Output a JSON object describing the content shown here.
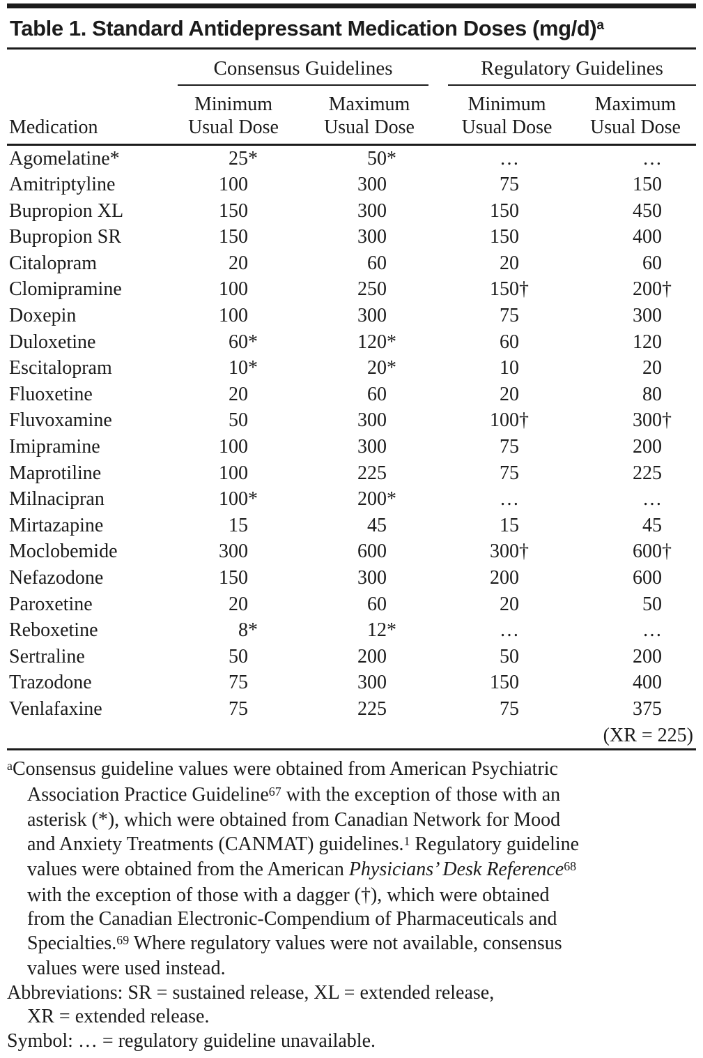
{
  "colors": {
    "text": "#1b1b1b",
    "rule": "#1b1b1b",
    "background": "#ffffff"
  },
  "title": {
    "text": "Table 1. Standard Antidepressant Medication Doses (mg/d)",
    "superscript": "a"
  },
  "table": {
    "medication_label": "Medication",
    "groups": [
      {
        "label": "Consensus Guidelines"
      },
      {
        "label": "Regulatory Guidelines"
      }
    ],
    "subcolumns": [
      {
        "line1": "Minimum",
        "line2": "Usual Dose"
      },
      {
        "line1": "Maximum",
        "line2": "Usual Dose"
      },
      {
        "line1": "Minimum",
        "line2": "Usual Dose"
      },
      {
        "line1": "Maximum",
        "line2": "Usual Dose"
      }
    ],
    "rows": [
      {
        "name": "Agomelatine*",
        "values": [
          "25*",
          "50*",
          "…",
          "…"
        ]
      },
      {
        "name": "Amitriptyline",
        "values": [
          "100",
          "300",
          "75",
          "150"
        ]
      },
      {
        "name": "Bupropion XL",
        "values": [
          "150",
          "300",
          "150",
          "450"
        ]
      },
      {
        "name": "Bupropion SR",
        "values": [
          "150",
          "300",
          "150",
          "400"
        ]
      },
      {
        "name": "Citalopram",
        "values": [
          "20",
          "60",
          "20",
          "60"
        ]
      },
      {
        "name": "Clomipramine",
        "values": [
          "100",
          "250",
          "150†",
          "200†"
        ]
      },
      {
        "name": "Doxepin",
        "values": [
          "100",
          "300",
          "75",
          "300"
        ]
      },
      {
        "name": "Duloxetine",
        "values": [
          "60*",
          "120*",
          "60",
          "120"
        ]
      },
      {
        "name": "Escitalopram",
        "values": [
          "10*",
          "20*",
          "10",
          "20"
        ]
      },
      {
        "name": "Fluoxetine",
        "values": [
          "20",
          "60",
          "20",
          "80"
        ]
      },
      {
        "name": "Fluvoxamine",
        "values": [
          "50",
          "300",
          "100†",
          "300†"
        ]
      },
      {
        "name": "Imipramine",
        "values": [
          "100",
          "300",
          "75",
          "200"
        ]
      },
      {
        "name": "Maprotiline",
        "values": [
          "100",
          "225",
          "75",
          "225"
        ]
      },
      {
        "name": "Milnacipran",
        "values": [
          "100*",
          "200*",
          "…",
          "…"
        ]
      },
      {
        "name": "Mirtazapine",
        "values": [
          "15",
          "45",
          "15",
          "45"
        ]
      },
      {
        "name": "Moclobemide",
        "values": [
          "300",
          "600",
          "300†",
          "600†"
        ]
      },
      {
        "name": "Nefazodone",
        "values": [
          "150",
          "300",
          "200",
          "600"
        ]
      },
      {
        "name": "Paroxetine",
        "values": [
          "20",
          "60",
          "20",
          "50"
        ]
      },
      {
        "name": "Reboxetine",
        "values": [
          "8*",
          "12*",
          "…",
          "…"
        ]
      },
      {
        "name": "Sertraline",
        "values": [
          "50",
          "200",
          "50",
          "200"
        ]
      },
      {
        "name": "Trazodone",
        "values": [
          "75",
          "300",
          "150",
          "400"
        ]
      },
      {
        "name": "Venlafaxine",
        "values": [
          "75",
          "225",
          "75",
          "375"
        ]
      }
    ],
    "xr_note": "(XR = 225)"
  },
  "footnotes": {
    "lines": [
      {
        "indent": false,
        "runs": [
          {
            "text": "a",
            "sup": true
          },
          {
            "text": "Consensus guideline values were obtained from American Psychiatric"
          }
        ]
      },
      {
        "indent": true,
        "runs": [
          {
            "text": "Association Practice Guideline"
          },
          {
            "text": "67",
            "sup": true
          },
          {
            "text": " with the exception of those with an"
          }
        ]
      },
      {
        "indent": true,
        "runs": [
          {
            "text": "asterisk (*), which were obtained from Canadian Network for Mood"
          }
        ]
      },
      {
        "indent": true,
        "runs": [
          {
            "text": "and Anxiety Treatments (CANMAT) guidelines."
          },
          {
            "text": "1",
            "sup": true
          },
          {
            "text": " Regulatory guideline"
          }
        ]
      },
      {
        "indent": true,
        "runs": [
          {
            "text": "values were obtained from the American "
          },
          {
            "text": "Physicians’ Desk Reference",
            "italic": true
          },
          {
            "text": "68",
            "sup": true
          }
        ]
      },
      {
        "indent": true,
        "runs": [
          {
            "text": "with the exception of those with a dagger (†), which were obtained"
          }
        ]
      },
      {
        "indent": true,
        "runs": [
          {
            "text": "from the Canadian Electronic-Compendium of Pharmaceuticals and"
          }
        ]
      },
      {
        "indent": true,
        "runs": [
          {
            "text": "Specialties."
          },
          {
            "text": "69",
            "sup": true
          },
          {
            "text": " Where regulatory values were not available, consensus"
          }
        ]
      },
      {
        "indent": true,
        "runs": [
          {
            "text": "values were used instead."
          }
        ]
      },
      {
        "indent": false,
        "runs": [
          {
            "text": "Abbreviations: SR = sustained release, XL = extended release,"
          }
        ]
      },
      {
        "indent": true,
        "runs": [
          {
            "text": "XR = extended release."
          }
        ]
      },
      {
        "indent": false,
        "runs": [
          {
            "text": "Symbol: … = regulatory guideline unavailable."
          }
        ]
      }
    ]
  }
}
